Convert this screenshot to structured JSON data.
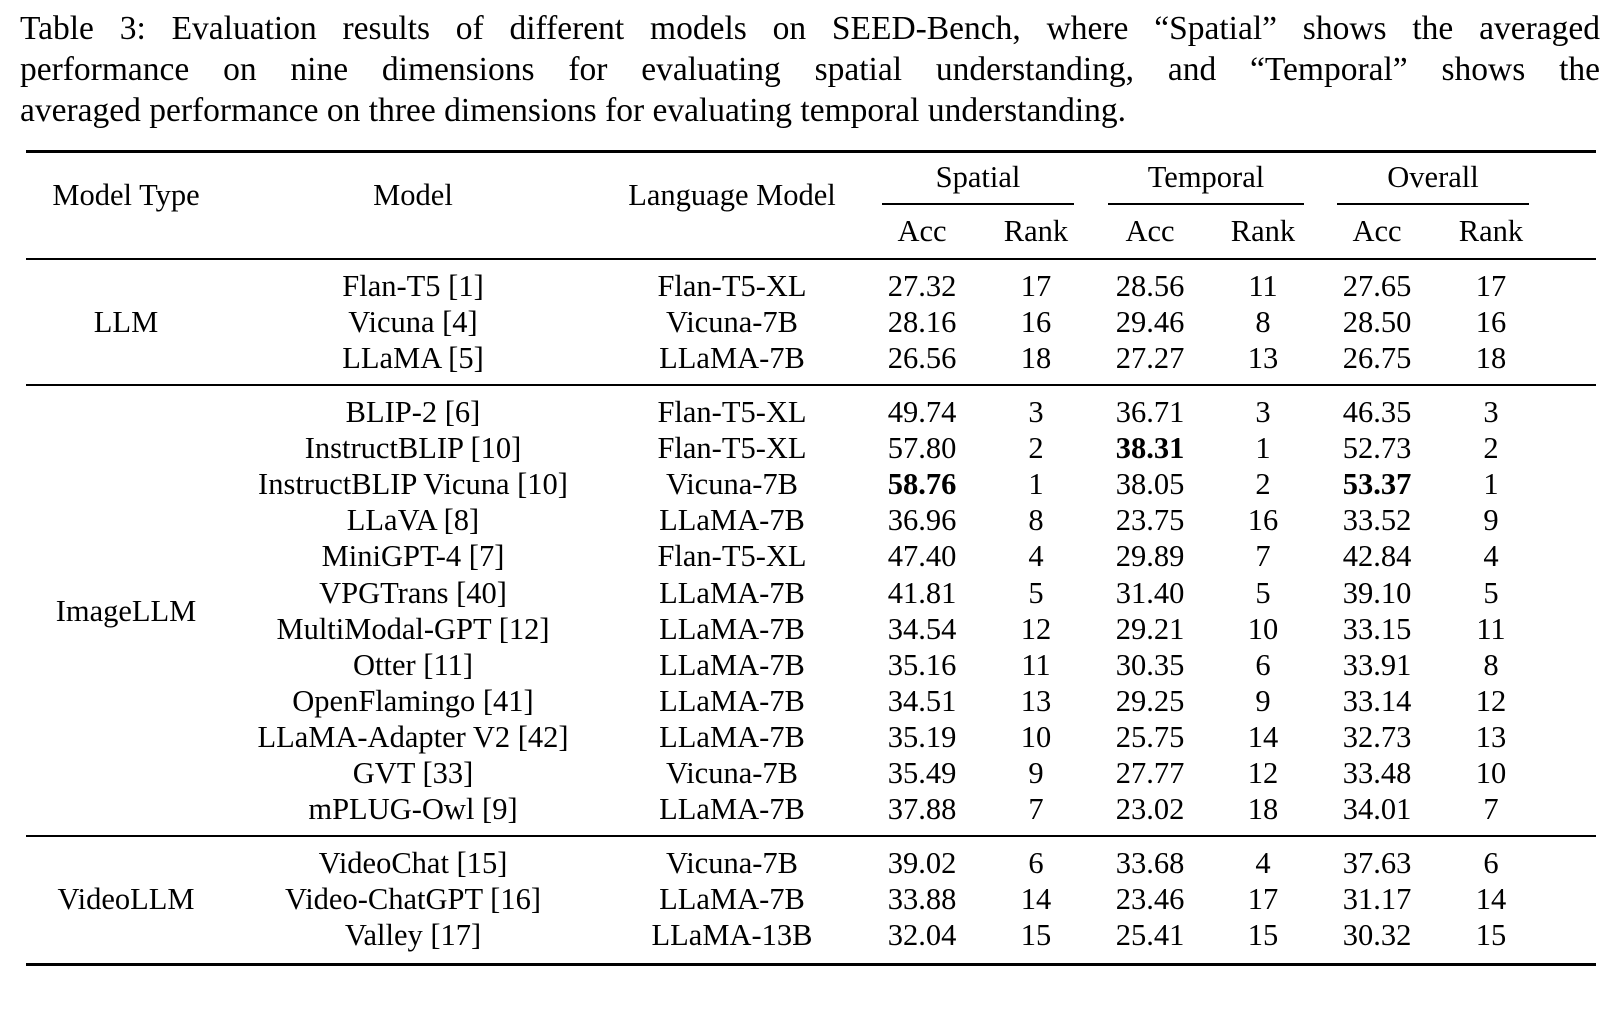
{
  "caption": {
    "lines": [
      "Table 3: Evaluation results of different models on SEED-Bench, where “Spatial” shows the averaged",
      "performance on nine dimensions for evaluating spatial understanding, and “Temporal” shows the",
      "averaged performance on three dimensions for evaluating temporal understanding."
    ]
  },
  "header": {
    "model_type": "Model Type",
    "model": "Model",
    "language_model": "Language Model",
    "spatial": "Spatial",
    "temporal": "Temporal",
    "overall": "Overall",
    "acc": "Acc",
    "rank": "Rank"
  },
  "groups": [
    {
      "name": "LLM",
      "rows": [
        {
          "model": "Flan-T5 [1]",
          "lm": "Flan-T5-XL",
          "s_acc": "27.32",
          "s_rank": "17",
          "t_acc": "28.56",
          "t_rank": "11",
          "o_acc": "27.65",
          "o_rank": "17"
        },
        {
          "model": "Vicuna [4]",
          "lm": "Vicuna-7B",
          "s_acc": "28.16",
          "s_rank": "16",
          "t_acc": "29.46",
          "t_rank": "8",
          "o_acc": "28.50",
          "o_rank": "16"
        },
        {
          "model": "LLaMA [5]",
          "lm": "LLaMA-7B",
          "s_acc": "26.56",
          "s_rank": "18",
          "t_acc": "27.27",
          "t_rank": "13",
          "o_acc": "26.75",
          "o_rank": "18"
        }
      ]
    },
    {
      "name": "ImageLLM",
      "rows": [
        {
          "model": "BLIP-2 [6]",
          "lm": "Flan-T5-XL",
          "s_acc": "49.74",
          "s_rank": "3",
          "t_acc": "36.71",
          "t_rank": "3",
          "o_acc": "46.35",
          "o_rank": "3"
        },
        {
          "model": "InstructBLIP [10]",
          "lm": "Flan-T5-XL",
          "s_acc": "57.80",
          "s_rank": "2",
          "t_acc": "38.31",
          "t_rank": "1",
          "o_acc": "52.73",
          "o_rank": "2",
          "bold": [
            "t_acc"
          ]
        },
        {
          "model": "InstructBLIP Vicuna [10]",
          "lm": "Vicuna-7B",
          "s_acc": "58.76",
          "s_rank": "1",
          "t_acc": "38.05",
          "t_rank": "2",
          "o_acc": "53.37",
          "o_rank": "1",
          "bold": [
            "s_acc",
            "o_acc"
          ]
        },
        {
          "model": "LLaVA [8]",
          "lm": "LLaMA-7B",
          "s_acc": "36.96",
          "s_rank": "8",
          "t_acc": "23.75",
          "t_rank": "16",
          "o_acc": "33.52",
          "o_rank": "9"
        },
        {
          "model": "MiniGPT-4 [7]",
          "lm": "Flan-T5-XL",
          "s_acc": "47.40",
          "s_rank": "4",
          "t_acc": "29.89",
          "t_rank": "7",
          "o_acc": "42.84",
          "o_rank": "4"
        },
        {
          "model": "VPGTrans [40]",
          "lm": "LLaMA-7B",
          "s_acc": "41.81",
          "s_rank": "5",
          "t_acc": "31.40",
          "t_rank": "5",
          "o_acc": "39.10",
          "o_rank": "5"
        },
        {
          "model": "MultiModal-GPT [12]",
          "lm": "LLaMA-7B",
          "s_acc": "34.54",
          "s_rank": "12",
          "t_acc": "29.21",
          "t_rank": "10",
          "o_acc": "33.15",
          "o_rank": "11"
        },
        {
          "model": "Otter [11]",
          "lm": "LLaMA-7B",
          "s_acc": "35.16",
          "s_rank": "11",
          "t_acc": "30.35",
          "t_rank": "6",
          "o_acc": "33.91",
          "o_rank": "8"
        },
        {
          "model": "OpenFlamingo [41]",
          "lm": "LLaMA-7B",
          "s_acc": "34.51",
          "s_rank": "13",
          "t_acc": "29.25",
          "t_rank": "9",
          "o_acc": "33.14",
          "o_rank": "12"
        },
        {
          "model": "LLaMA-Adapter V2 [42]",
          "lm": "LLaMA-7B",
          "s_acc": "35.19",
          "s_rank": "10",
          "t_acc": "25.75",
          "t_rank": "14",
          "o_acc": "32.73",
          "o_rank": "13"
        },
        {
          "model": "GVT [33]",
          "lm": "Vicuna-7B",
          "s_acc": "35.49",
          "s_rank": "9",
          "t_acc": "27.77",
          "t_rank": "12",
          "o_acc": "33.48",
          "o_rank": "10"
        },
        {
          "model": "mPLUG-Owl [9]",
          "lm": "LLaMA-7B",
          "s_acc": "37.88",
          "s_rank": "7",
          "t_acc": "23.02",
          "t_rank": "18",
          "o_acc": "34.01",
          "o_rank": "7"
        }
      ]
    },
    {
      "name": "VideoLLM",
      "rows": [
        {
          "model": "VideoChat [15]",
          "lm": "Vicuna-7B",
          "s_acc": "39.02",
          "s_rank": "6",
          "t_acc": "33.68",
          "t_rank": "4",
          "o_acc": "37.63",
          "o_rank": "6"
        },
        {
          "model": "Video-ChatGPT [16]",
          "lm": "LLaMA-7B",
          "s_acc": "33.88",
          "s_rank": "14",
          "t_acc": "23.46",
          "t_rank": "17",
          "o_acc": "31.17",
          "o_rank": "14"
        },
        {
          "model": "Valley [17]",
          "lm": "LLaMA-13B",
          "s_acc": "32.04",
          "s_rank": "15",
          "t_acc": "25.41",
          "t_rank": "15",
          "o_acc": "30.32",
          "o_rank": "15"
        }
      ]
    }
  ]
}
